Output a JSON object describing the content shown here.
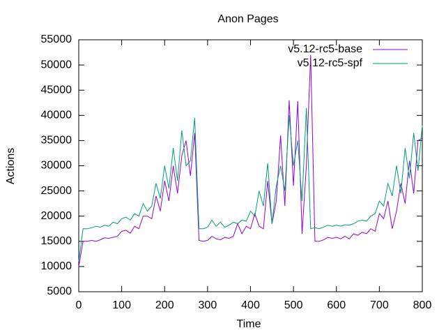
{
  "chart_data": {
    "type": "line",
    "title": "Anon Pages",
    "xlabel": "Time",
    "ylabel": "Actions",
    "x": [
      0,
      10,
      20,
      30,
      40,
      50,
      60,
      70,
      80,
      90,
      100,
      110,
      120,
      130,
      140,
      150,
      160,
      170,
      180,
      190,
      200,
      210,
      220,
      230,
      240,
      250,
      260,
      270,
      280,
      290,
      300,
      310,
      320,
      330,
      340,
      350,
      360,
      370,
      380,
      390,
      400,
      410,
      420,
      430,
      440,
      450,
      460,
      470,
      480,
      490,
      500,
      510,
      520,
      530,
      540,
      550,
      560,
      570,
      580,
      590,
      600,
      610,
      620,
      630,
      640,
      650,
      660,
      670,
      680,
      690,
      700,
      710,
      720,
      730,
      740,
      750,
      760,
      770,
      780,
      790,
      800
    ],
    "series": [
      {
        "name": "v5.12-rc5-base",
        "color": "#9400d3",
        "values": [
          10000,
          15000,
          15000,
          15200,
          15000,
          15300,
          15700,
          15600,
          15800,
          16000,
          17000,
          17200,
          16600,
          18000,
          17500,
          20000,
          20000,
          19500,
          24000,
          21000,
          27000,
          23000,
          30000,
          24500,
          32000,
          35000,
          28000,
          36500,
          15200,
          15000,
          15200,
          16000,
          15500,
          15300,
          15800,
          15600,
          16000,
          18500,
          16500,
          18000,
          17500,
          20500,
          18000,
          17500,
          27000,
          18500,
          23000,
          36000,
          22000,
          43000,
          26000,
          42800,
          16500,
          30000,
          52000,
          15000,
          15000,
          15300,
          15800,
          15600,
          15800,
          15500,
          16000,
          15500,
          16500,
          16200,
          16800,
          16500,
          17500,
          17000,
          20500,
          19500,
          23000,
          17500,
          21000,
          26500,
          22500,
          31000,
          24500,
          35000,
          35500
        ]
      },
      {
        "name": "v5.12-rc5-spf",
        "color": "#009e73",
        "values": [
          11000,
          17500,
          17500,
          17700,
          18000,
          17800,
          18200,
          18000,
          18800,
          18500,
          19500,
          19800,
          19200,
          20500,
          20000,
          22500,
          21000,
          22000,
          26500,
          23500,
          30000,
          25500,
          33500,
          27000,
          37000,
          30000,
          31000,
          39500,
          17500,
          17500,
          17800,
          19200,
          18000,
          18800,
          17800,
          18200,
          18800,
          18500,
          19200,
          19000,
          21000,
          20000,
          25000,
          22000,
          30500,
          18500,
          26000,
          30000,
          25000,
          40000,
          30000,
          35000,
          23000,
          41500,
          17500,
          17700,
          17500,
          17800,
          18200,
          18000,
          18200,
          18000,
          18300,
          18200,
          18500,
          19000,
          19200,
          19000,
          20000,
          20500,
          23000,
          22000,
          26500,
          24000,
          30000,
          24500,
          33500,
          27500,
          36500,
          29000,
          38000
        ]
      }
    ],
    "xlim": [
      0,
      800
    ],
    "xticks": [
      0,
      100,
      200,
      300,
      400,
      500,
      600,
      700,
      800
    ],
    "ylim": [
      5000,
      55000
    ],
    "yticks": [
      5000,
      10000,
      15000,
      20000,
      25000,
      30000,
      35000,
      40000,
      45000,
      50000,
      55000
    ],
    "legend": "top-right"
  }
}
